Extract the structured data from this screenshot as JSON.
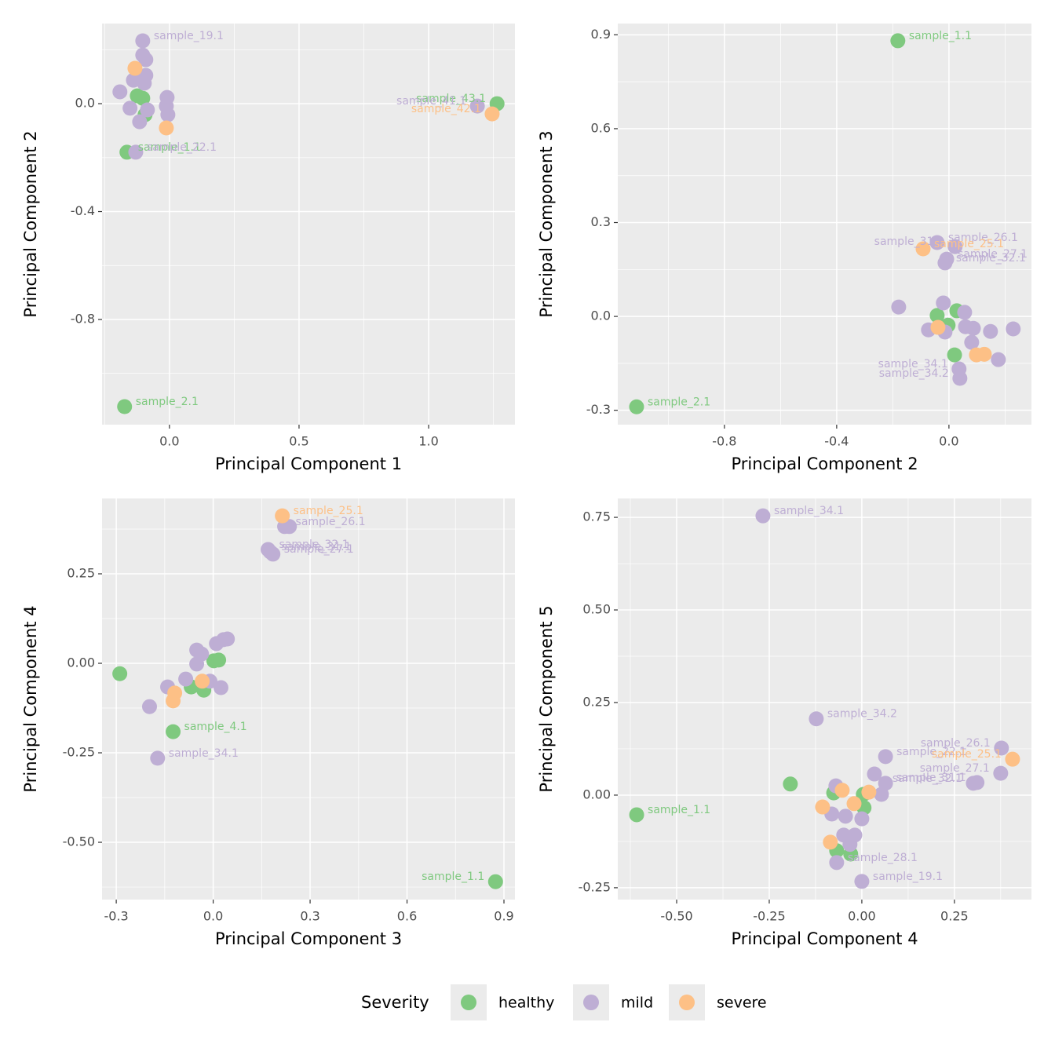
{
  "chart_data": [
    {
      "type": "scatter",
      "xlabel": "Principal Component 1",
      "ylabel": "Principal Component 2",
      "xlim": [
        -0.26,
        1.333
      ],
      "ylim": [
        -1.19,
        0.297
      ],
      "xticks": [
        {
          "value": 0,
          "label": "0.0"
        },
        0.5,
        {
          "value": 1,
          "label": "1.0"
        }
      ],
      "yticks": [
        {
          "value": 0,
          "label": "0.0"
        },
        -0.4,
        -0.8
      ],
      "grid": true,
      "series": [
        {
          "name": "healthy",
          "color": "#7fc97f",
          "x": [
            1.264,
            -0.164,
            -0.173,
            -0.124,
            -0.103,
            -0.094
          ],
          "values": [
            0.0,
            -0.18,
            -1.123,
            0.029,
            0.02,
            -0.041
          ],
          "labels": [
            "sample_43.1",
            "sample_1.1",
            "sample_2.1",
            null,
            null,
            null
          ]
        },
        {
          "name": "mild",
          "color": "#beaed4",
          "x": [
            -0.103,
            -0.103,
            -0.091,
            -0.091,
            -0.097,
            -0.139,
            -0.191,
            -0.152,
            -0.115,
            -0.085,
            -0.13,
            -0.009,
            -0.012,
            -0.006,
            1.188
          ],
          "values": [
            0.233,
            0.18,
            0.163,
            0.105,
            0.076,
            0.087,
            0.044,
            -0.017,
            -0.067,
            -0.023,
            -0.18,
            0.023,
            -0.009,
            -0.041,
            -0.009
          ],
          "labels": [
            "sample_19.1",
            null,
            null,
            null,
            null,
            null,
            null,
            null,
            null,
            null,
            "sample_22.1",
            null,
            null,
            null,
            "sample_41.1"
          ]
        },
        {
          "name": "severe",
          "color": "#fdc086",
          "x": [
            -0.133,
            -0.012,
            1.245
          ],
          "values": [
            0.131,
            -0.09,
            -0.038
          ],
          "labels": [
            null,
            null,
            "sample_42.1"
          ]
        }
      ]
    },
    {
      "type": "scatter",
      "xlabel": "Principal Component 2",
      "ylabel": "Principal Component 3",
      "xlim": [
        -1.18,
        0.294
      ],
      "ylim": [
        -0.346,
        0.936
      ],
      "xticks": [
        -0.8,
        -0.4,
        {
          "value": 0,
          "label": "0.0"
        }
      ],
      "yticks": [
        0.9,
        0.6,
        0.3,
        {
          "value": 0,
          "label": "0.0"
        },
        -0.3
      ],
      "grid": true,
      "series": [
        {
          "name": "healthy",
          "color": "#7fc97f",
          "x": [
            -0.182,
            -1.113,
            -0.042,
            -0.003,
            0.028,
            0.02
          ],
          "values": [
            0.881,
            -0.289,
            0.003,
            -0.028,
            0.018,
            -0.123
          ],
          "labels": [
            "sample_1.1",
            "sample_2.1",
            null,
            null,
            null,
            null
          ]
        },
        {
          "name": "mild",
          "color": "#beaed4",
          "x": [
            -0.042,
            0.022,
            -0.008,
            -0.014,
            -0.179,
            -0.02,
            0.056,
            -0.073,
            -0.014,
            0.059,
            0.087,
            0.081,
            0.148,
            0.229,
            0.176,
            0.036,
            0.039
          ],
          "values": [
            0.236,
            0.223,
            0.183,
            0.171,
            0.03,
            0.043,
            0.013,
            -0.043,
            -0.05,
            -0.033,
            -0.038,
            -0.083,
            -0.048,
            -0.04,
            -0.138,
            -0.168,
            -0.198
          ],
          "labels": [
            "sample_26.1",
            "sample_31.1",
            "sample_27.1",
            "sample_32.1",
            null,
            null,
            null,
            null,
            null,
            null,
            null,
            null,
            null,
            null,
            null,
            "sample_34.1",
            "sample_34.2"
          ]
        },
        {
          "name": "severe",
          "color": "#fdc086",
          "x": [
            -0.092,
            -0.039,
            0.098,
            0.126
          ],
          "values": [
            0.216,
            -0.035,
            -0.123,
            -0.121
          ],
          "labels": [
            "sample_25.1",
            null,
            null,
            null
          ]
        }
      ]
    },
    {
      "type": "scatter",
      "xlabel": "Principal Component 3",
      "ylabel": "Principal Component 4",
      "xlim": [
        -0.344,
        0.934
      ],
      "ylim": [
        -0.66,
        0.4605
      ],
      "xticks": [
        -0.3,
        {
          "value": 0,
          "label": "0.0"
        },
        0.3,
        0.6,
        0.9
      ],
      "yticks": [
        0.25,
        {
          "value": 0,
          "label": "0.00"
        },
        -0.25,
        {
          "value": -0.5,
          "label": "-0.50"
        }
      ],
      "grid": true,
      "series": [
        {
          "name": "healthy",
          "color": "#7fc97f",
          "x": [
            0.874,
            -0.124,
            -0.289,
            0.002,
            0.017,
            -0.029,
            -0.068
          ],
          "values": [
            -0.61,
            -0.191,
            -0.029,
            0.007,
            0.009,
            -0.075,
            -0.066
          ],
          "labels": [
            "sample_1.1",
            "sample_4.1",
            null,
            null,
            null,
            null,
            null
          ]
        },
        {
          "name": "mild",
          "color": "#beaed4",
          "x": [
            0.177,
            0.185,
            0.221,
            0.236,
            0.17,
            -0.197,
            -0.172,
            -0.141,
            -0.085,
            -0.051,
            -0.036,
            -0.051,
            -0.01,
            0.01,
            0.032,
            0.044,
            0.024
          ],
          "values": [
            0.311,
            0.305,
            0.382,
            0.382,
            0.318,
            -0.121,
            -0.265,
            -0.066,
            -0.044,
            0.037,
            0.026,
            -0.002,
            -0.05,
            0.055,
            0.066,
            0.068,
            -0.068
          ],
          "labels": [
            "sample_31.1",
            "sample_27.1",
            "sample_26.1",
            null,
            "sample_32.1",
            null,
            "sample_34.1",
            null,
            null,
            null,
            null,
            null,
            null,
            null,
            null,
            null,
            null
          ]
        },
        {
          "name": "severe",
          "color": "#fdc086",
          "x": [
            0.214,
            -0.124,
            -0.119,
            -0.034
          ],
          "values": [
            0.412,
            -0.105,
            -0.083,
            -0.05
          ],
          "labels": [
            "sample_25.1",
            null,
            null,
            null
          ]
        }
      ]
    },
    {
      "type": "scatter",
      "xlabel": "Principal Component 4",
      "ylabel": "Principal Component 5",
      "xlim": [
        -0.659,
        0.458
      ],
      "ylim": [
        -0.282,
        0.801
      ],
      "xticks": [
        {
          "value": -0.5,
          "label": "-0.50"
        },
        -0.25,
        {
          "value": 0,
          "label": "0.00"
        },
        0.25
      ],
      "yticks": [
        0.75,
        {
          "value": 0.5,
          "label": "0.50"
        },
        0.25,
        {
          "value": 0,
          "label": "0.00"
        },
        -0.25
      ],
      "grid": true,
      "series": [
        {
          "name": "healthy",
          "color": "#7fc97f",
          "x": [
            -0.608,
            -0.193,
            -0.076,
            0.004,
            0.006,
            -0.068,
            -0.03
          ],
          "values": [
            -0.053,
            0.03,
            0.006,
            0.002,
            -0.034,
            -0.15,
            -0.159
          ],
          "labels": [
            "sample_1.1",
            null,
            null,
            null,
            null,
            null,
            null
          ]
        },
        {
          "name": "mild",
          "color": "#beaed4",
          "x": [
            -0.267,
            -0.123,
            0.377,
            0.375,
            0.301,
            0.311,
            0.064,
            0.034,
            0.064,
            0.053,
            -0.07,
            -0.044,
            0,
            -0.049,
            -0.019,
            -0.032,
            -0.068,
            0,
            -0.081
          ],
          "values": [
            0.754,
            0.206,
            0.127,
            0.059,
            0.032,
            0.034,
            0.104,
            0.057,
            0.032,
            0.002,
            0.025,
            -0.057,
            -0.064,
            -0.108,
            -0.108,
            -0.133,
            -0.182,
            -0.233,
            -0.051
          ],
          "labels": [
            "sample_34.1",
            "sample_34.2",
            "sample_26.1",
            "sample_27.1",
            "sample_32.1",
            "sample_31.1",
            "sample_22.1",
            null,
            null,
            null,
            null,
            null,
            null,
            null,
            null,
            null,
            "sample_28.1",
            "sample_19.1",
            null
          ]
        },
        {
          "name": "severe",
          "color": "#fdc086",
          "x": [
            0.407,
            -0.106,
            -0.085,
            -0.053,
            0.019,
            -0.021
          ],
          "values": [
            0.097,
            -0.032,
            -0.127,
            0.013,
            0.008,
            -0.023
          ],
          "labels": [
            "sample_25.1",
            null,
            null,
            null,
            null,
            null
          ]
        }
      ]
    }
  ],
  "legend": {
    "title": "Severity"
  }
}
